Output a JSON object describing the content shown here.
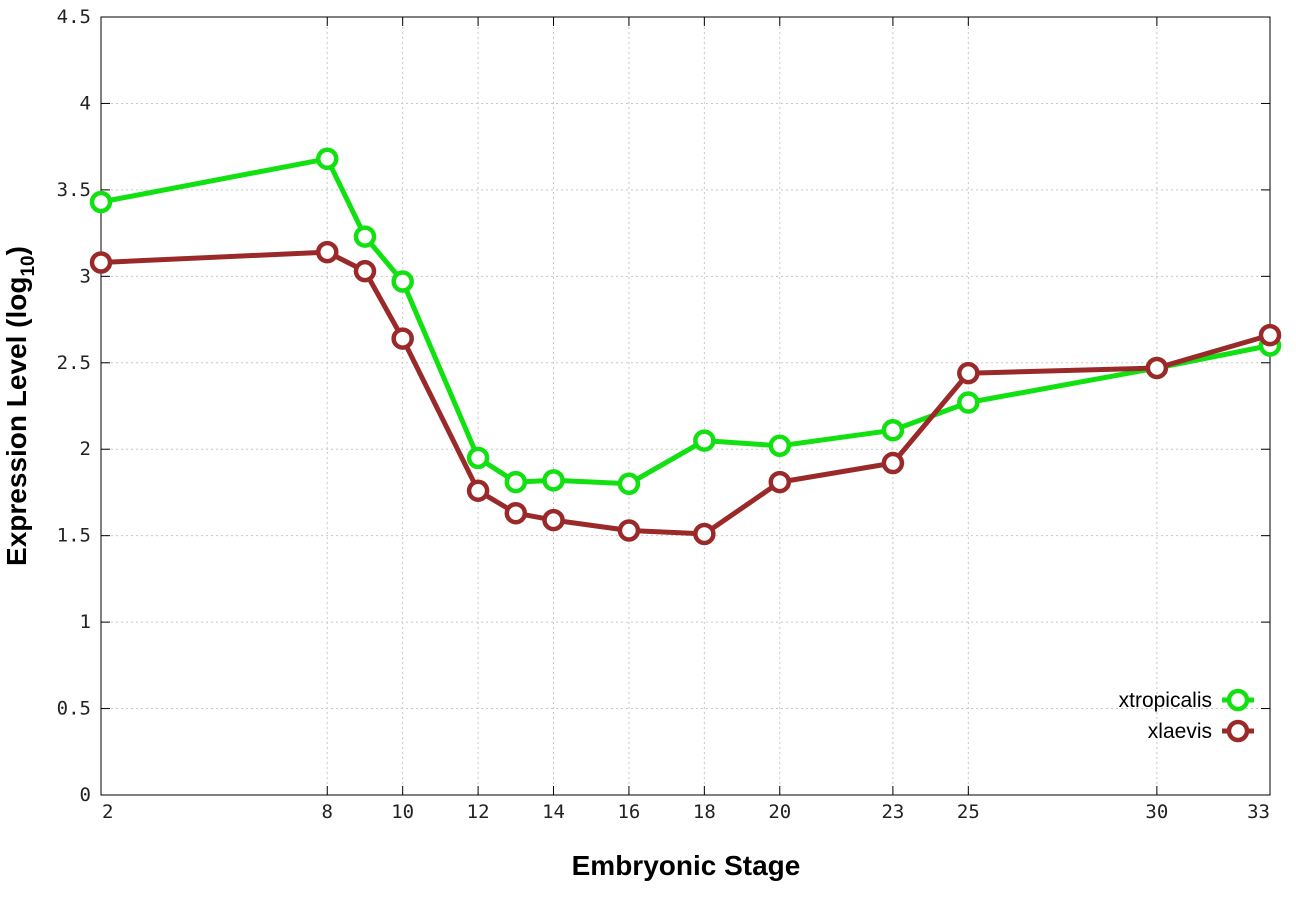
{
  "chart_data": {
    "type": "line",
    "xlabel": "Embryonic Stage",
    "ylabel_main": "Expression Level (log",
    "ylabel_sub": "10",
    "ylabel_close": ")",
    "x": [
      2,
      8,
      9,
      10,
      12,
      13,
      14,
      16,
      18,
      20,
      23,
      25,
      30,
      33
    ],
    "x_ticks": [
      "2",
      "8",
      "10",
      "12",
      "14",
      "16",
      "18",
      "20",
      "23",
      "25",
      "30",
      "33"
    ],
    "x_tick_values": [
      2,
      8,
      10,
      12,
      14,
      16,
      18,
      20,
      23,
      25,
      30,
      33
    ],
    "y_ticks": [
      "0",
      "0.5",
      "1",
      "1.5",
      "2",
      "2.5",
      "3",
      "3.5",
      "4",
      "4.5"
    ],
    "y_tick_values": [
      0,
      0.5,
      1,
      1.5,
      2,
      2.5,
      3,
      3.5,
      4,
      4.5
    ],
    "xlim": [
      2,
      33
    ],
    "ylim": [
      0,
      4.5
    ],
    "grid": true,
    "legend_position": "bottom-right",
    "series": [
      {
        "name": "xtropicalis",
        "color": "#11e011",
        "values": [
          3.43,
          3.68,
          3.23,
          2.97,
          1.95,
          1.81,
          1.82,
          1.8,
          2.05,
          2.02,
          2.11,
          2.27,
          2.47,
          2.6
        ]
      },
      {
        "name": "xlaevis",
        "color": "#9a2a2a",
        "values": [
          3.08,
          3.14,
          3.03,
          2.64,
          1.76,
          1.63,
          1.59,
          1.53,
          1.51,
          1.81,
          1.92,
          2.44,
          2.47,
          2.66
        ]
      }
    ]
  }
}
